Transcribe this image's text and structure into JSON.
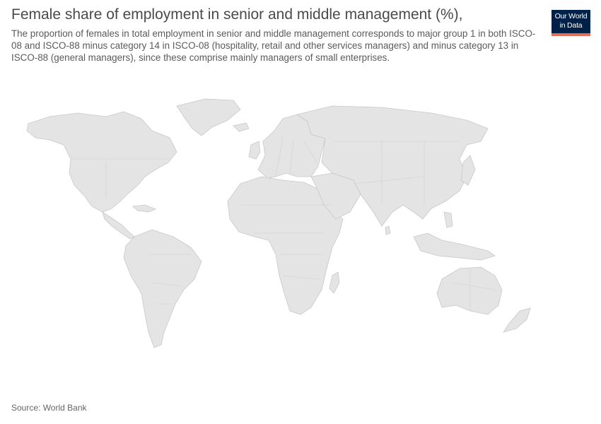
{
  "header": {
    "title": "Female share of employment in senior and middle management (%),",
    "subtitle": "The proportion of females in total employment in senior and middle management corresponds to major group 1 in both ISCO-08 and ISCO-88 minus category 14 in ISCO-08 (hospitality, retail and other services managers) and minus category 13 in ISCO-88 (general managers), since these comprise mainly managers of small enterprises."
  },
  "logo": {
    "line1": "Our World",
    "line2": "in Data"
  },
  "footer": {
    "source": "Source: World Bank"
  },
  "colors": {
    "land": "#e4e4e4",
    "border": "#c8c8c8",
    "logo_bg": "#002147",
    "logo_accent": "#e56e5a"
  }
}
